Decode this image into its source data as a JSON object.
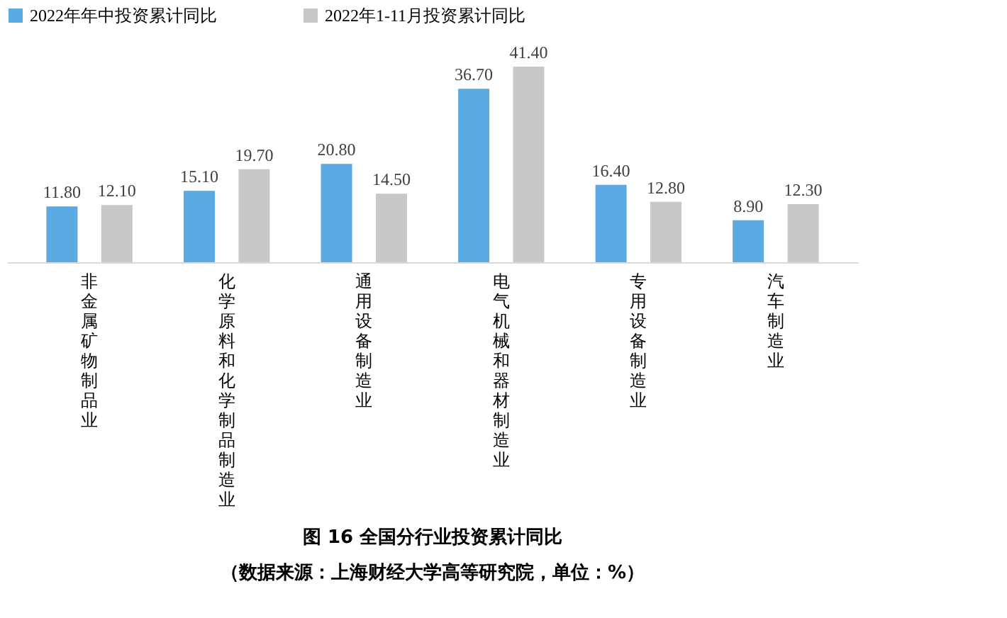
{
  "chart_data": {
    "type": "bar",
    "title": "图 16 全国分行业投资累计同比",
    "annotations": [
      "（数据来源：上海财经大学高等研究院，单位：%）"
    ],
    "categories": [
      "非金属矿物制品业",
      "化学原料和化学制品制造业",
      "通用设备制造业",
      "电气机械和器材制造业",
      "专用设备制造业",
      "汽车制造业"
    ],
    "series": [
      {
        "name": "2022年年中投资累计同比",
        "color": "#5baae3",
        "values": [
          11.8,
          15.1,
          20.8,
          36.7,
          16.4,
          8.9
        ],
        "value_labels": [
          "11.80",
          "15.10",
          "20.80",
          "36.70",
          "16.40",
          "8.90"
        ]
      },
      {
        "name": "2022年1-11月投资累计同比",
        "color": "#c8c8c8",
        "values": [
          12.1,
          19.7,
          14.5,
          41.4,
          12.8,
          12.3
        ],
        "value_labels": [
          "12.10",
          "19.70",
          "14.50",
          "41.40",
          "12.80",
          "12.30"
        ]
      }
    ],
    "legend": "top",
    "grid": false
  }
}
